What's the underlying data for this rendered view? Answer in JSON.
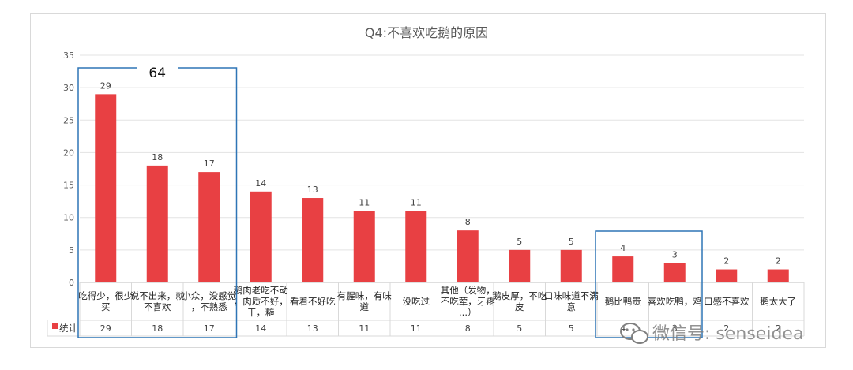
{
  "chart_data": {
    "type": "bar",
    "title": "Q4:不喜欢吃鹅的原因",
    "categories": [
      "吃得少，很少买",
      "说不出来，就不喜欢",
      "小众，没感觉，不熟悉",
      "鹅肉老吃不动，肉质不好，干，糙",
      "看着不好吃",
      "有腥味，有味道",
      "没吃过",
      "其他（发物，不吃荤，牙疼...）",
      "鹅皮厚，不吃皮",
      "口味味道不满意",
      "鹅比鸭贵",
      "喜欢吃鸭，鸡",
      "口感不喜欢",
      "鹅太大了"
    ],
    "series": [
      {
        "name": "统计",
        "values": [
          29,
          18,
          17,
          14,
          13,
          11,
          11,
          8,
          5,
          5,
          4,
          3,
          2,
          2
        ],
        "color": "#e84043"
      }
    ],
    "ylim": [
      0,
      35
    ],
    "yticks": [
      0,
      5,
      10,
      15,
      20,
      25,
      30,
      35
    ],
    "grid": true,
    "data_table": true,
    "annotations": [
      {
        "type": "box",
        "categories": [
          0,
          1,
          2
        ],
        "label": "64",
        "color": "#2e75b6"
      },
      {
        "type": "box",
        "categories": [
          10,
          11
        ],
        "label": "",
        "color": "#2e75b6"
      }
    ]
  },
  "watermark": {
    "text": "微信号: senseidea",
    "icon": "wechat-icon"
  }
}
